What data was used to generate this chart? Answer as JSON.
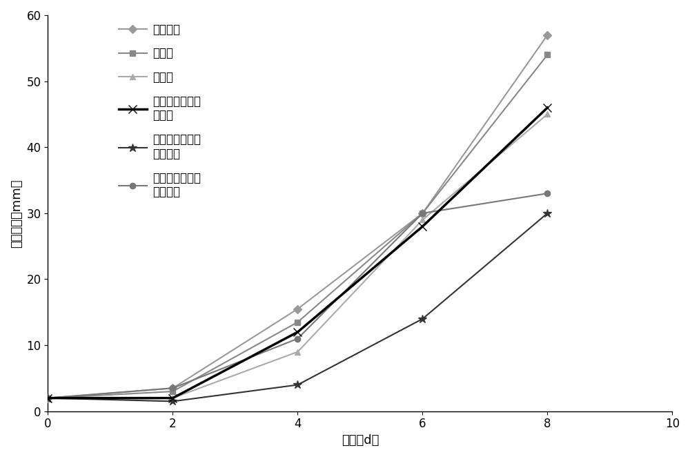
{
  "x": [
    0,
    2,
    4,
    6,
    8
  ],
  "series": [
    {
      "label": "空白对照",
      "values": [
        2,
        3.5,
        15.5,
        30,
        57
      ],
      "color": "#999999",
      "marker": "D",
      "linewidth": 1.5,
      "linestyle": "-",
      "markersize": 6,
      "zorder": 3
    },
    {
      "label": "多菌灵",
      "values": [
        2,
        3,
        13.5,
        30,
        54
      ],
      "color": "#888888",
      "marker": "s",
      "linewidth": 1.5,
      "linestyle": "-",
      "markersize": 6,
      "zorder": 3
    },
    {
      "label": "咪酰胺",
      "values": [
        2,
        2,
        9,
        29,
        45
      ],
      "color": "#aaaaaa",
      "marker": "^",
      "linewidth": 1.5,
      "linestyle": "-",
      "markersize": 6,
      "zorder": 3
    },
    {
      "label": "咪酰胺和松属素\n复合物",
      "values": [
        2,
        2,
        12,
        28,
        46
      ],
      "color": "#000000",
      "marker": "x",
      "linewidth": 2.5,
      "linestyle": "-",
      "markersize": 8,
      "zorder": 5
    },
    {
      "label": "多菌灵和高良姜\n素复合物",
      "values": [
        2,
        1.5,
        4,
        14,
        30
      ],
      "color": "#333333",
      "marker": "*",
      "linewidth": 1.5,
      "linestyle": "-",
      "markersize": 9,
      "zorder": 4
    },
    {
      "label": "咪酰胺和高良姜\n素复合物",
      "values": [
        2,
        3.5,
        11,
        30,
        33
      ],
      "color": "#777777",
      "marker": "o",
      "linewidth": 1.5,
      "linestyle": "-",
      "markersize": 6,
      "zorder": 3
    }
  ],
  "xlabel": "天数（d）",
  "ylabel": "菌斑直径（mm）",
  "xlim": [
    0,
    10
  ],
  "ylim": [
    0,
    60
  ],
  "xticks": [
    0,
    2,
    4,
    6,
    8,
    10
  ],
  "yticks": [
    0,
    10,
    20,
    30,
    40,
    50,
    60
  ],
  "legend_fontsize": 12,
  "axis_label_fontsize": 13,
  "tick_fontsize": 12,
  "figure_width": 10.0,
  "figure_height": 6.62,
  "dpi": 100
}
